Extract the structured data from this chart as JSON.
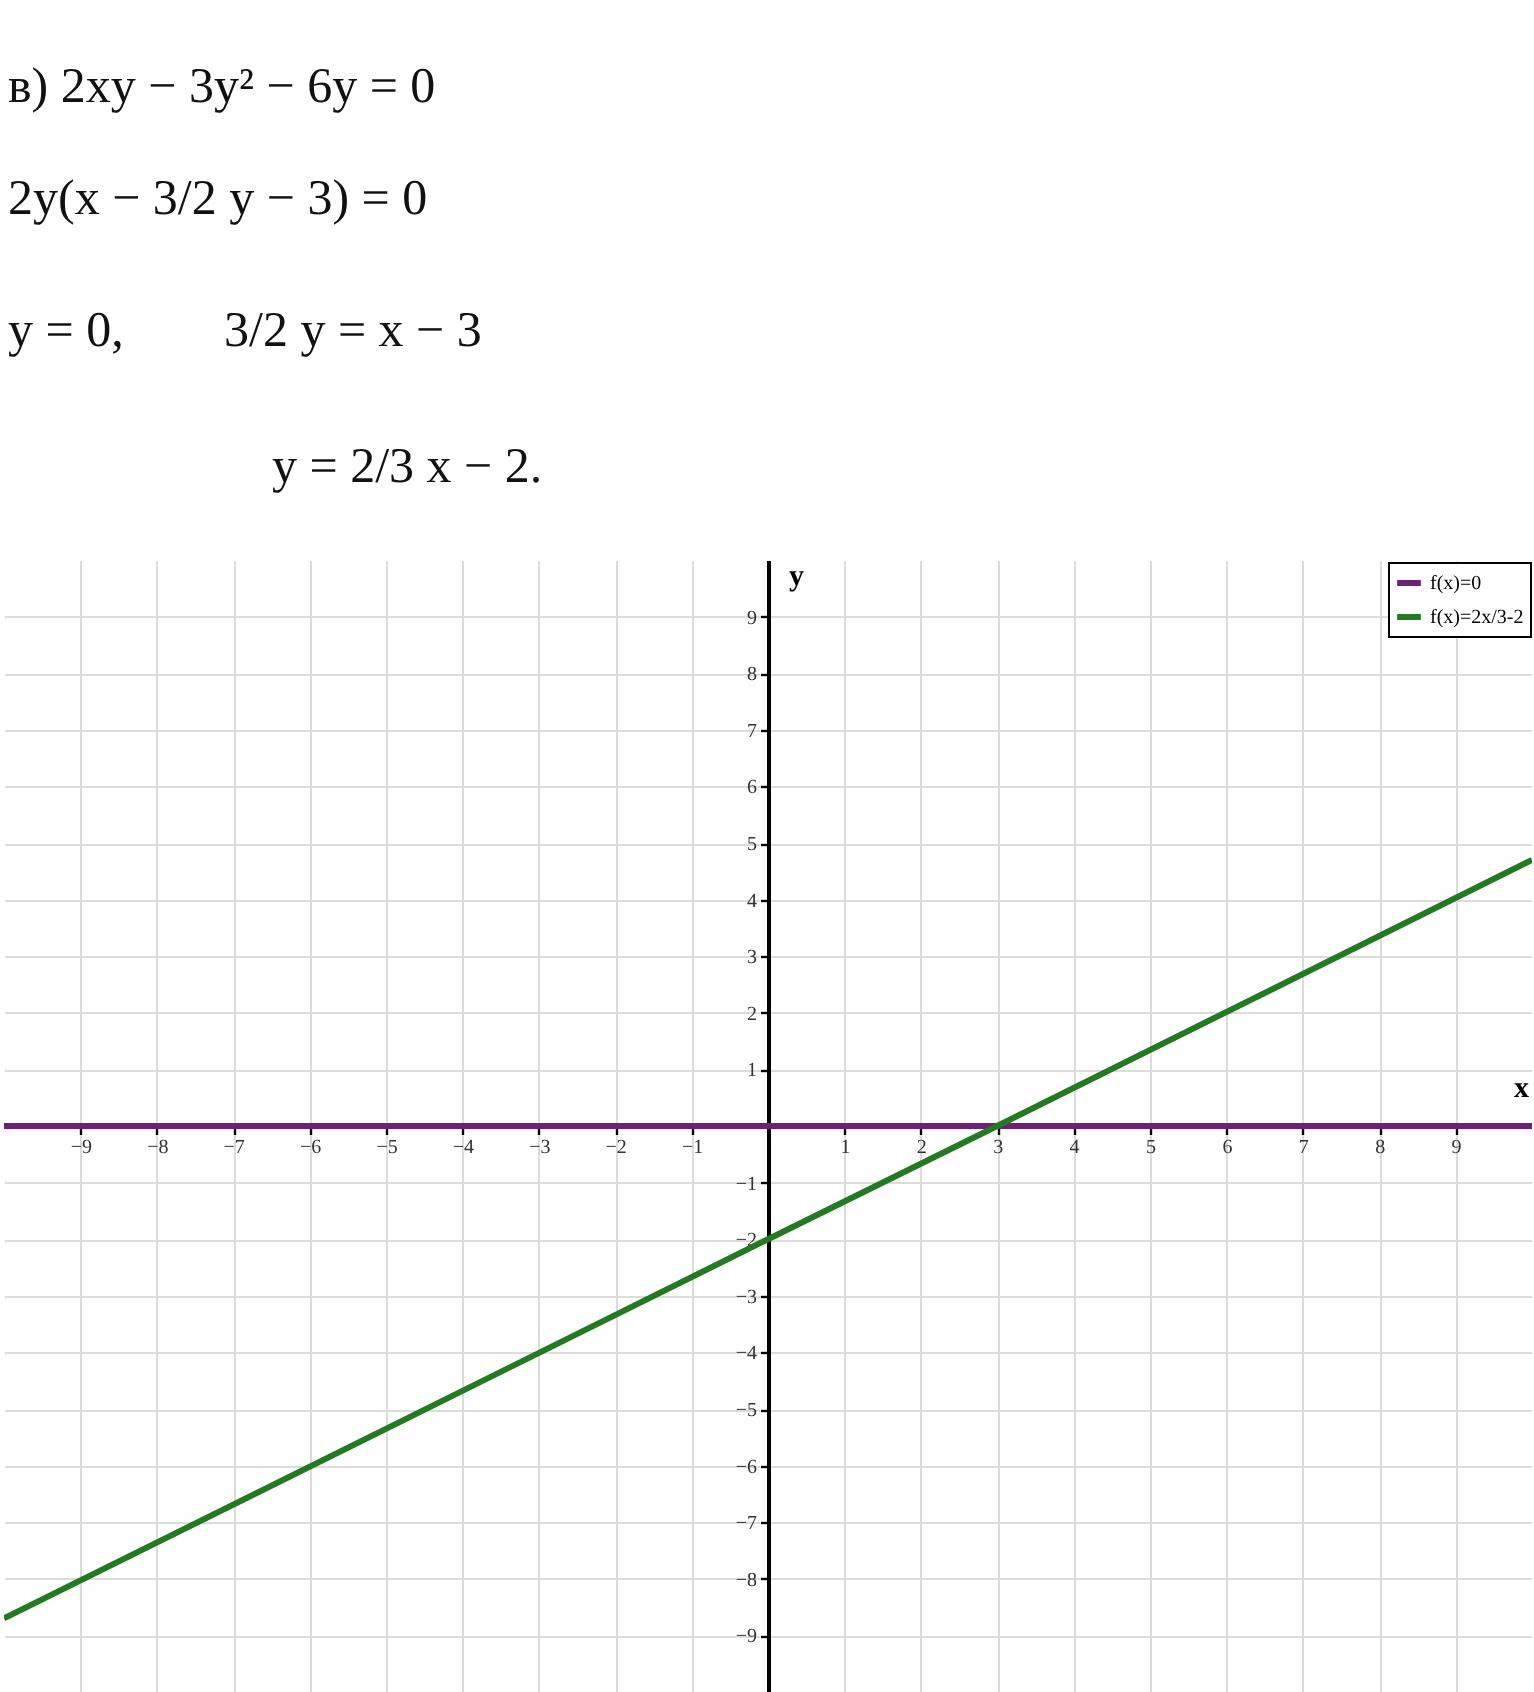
{
  "chart_data": {
    "type": "line",
    "annotations": [
      "в) 2xy − 3y² − 6y = 0",
      "2y(x − 3/2 y − 3) = 0",
      "y = 0,",
      "3/2 y = x − 3",
      "y = 2/3 x − 2."
    ],
    "xlabel": "x",
    "ylabel": "y",
    "xlim": [
      -10,
      10
    ],
    "ylim": [
      -10,
      10
    ],
    "xticks": [
      -9,
      -8,
      -7,
      -6,
      -5,
      -4,
      -3,
      -2,
      -1,
      1,
      2,
      3,
      4,
      5,
      6,
      7,
      8,
      9
    ],
    "yticks": [
      -9,
      -8,
      -7,
      -6,
      -5,
      -4,
      -3,
      -2,
      -1,
      1,
      2,
      3,
      4,
      5,
      6,
      7,
      8,
      9
    ],
    "grid": true,
    "legend": "top right",
    "line_style": "solid",
    "series": [
      {
        "name": "f(x)=0",
        "color": "#6e1f78",
        "x": [
          -10,
          10
        ],
        "values": [
          0,
          0
        ]
      },
      {
        "name": "f(x)=2x/3-2",
        "color": "#237a23",
        "x": [
          -10,
          0,
          3,
          10
        ],
        "values": [
          -8.7,
          -2,
          0,
          4.7
        ]
      }
    ]
  }
}
